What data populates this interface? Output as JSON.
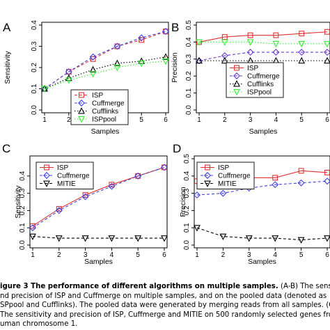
{
  "panels": [
    {
      "letter": "A",
      "ylabel": "Sensitivity",
      "xlabel": "Samples",
      "legend": [
        {
          "label": "ISP",
          "color": "#e03030",
          "marker": "square",
          "dash": "dashed"
        },
        {
          "label": "Cuffmerge",
          "color": "#4040e0",
          "marker": "diamond",
          "dash": "dashed"
        },
        {
          "label": "Cufflinks",
          "color": "#000000",
          "marker": "triangle-up",
          "dash": "dotted"
        },
        {
          "label": "ISPpool",
          "color": "#33ee33",
          "marker": "triangle-down",
          "dash": "dotted"
        }
      ]
    },
    {
      "letter": "B",
      "ylabel": "Precision",
      "xlabel": "Samples",
      "legend": [
        {
          "label": "ISP",
          "color": "#e03030",
          "marker": "square",
          "dash": "solid"
        },
        {
          "label": "Cuffmerge",
          "color": "#6a3ad0",
          "marker": "diamond",
          "dash": "dashed"
        },
        {
          "label": "Cufflinks",
          "color": "#000000",
          "marker": "triangle-up",
          "dash": "dotted"
        },
        {
          "label": "ISPpool",
          "color": "#33ee33",
          "marker": "triangle-down",
          "dash": "dotted"
        }
      ]
    },
    {
      "letter": "C",
      "ylabel": "Sensitivity",
      "xlabel": "Samples",
      "legend": [
        {
          "label": "ISP",
          "color": "#e03030",
          "marker": "square",
          "dash": "solid"
        },
        {
          "label": "Cuffmerge",
          "color": "#4040e0",
          "marker": "diamond",
          "dash": "dashed"
        },
        {
          "label": "MITIE",
          "color": "#000000",
          "marker": "triangle-down",
          "dash": "dashed"
        }
      ]
    },
    {
      "letter": "D",
      "ylabel": "Precision",
      "xlabel": "Samples",
      "legend": [
        {
          "label": "ISP",
          "color": "#e03030",
          "marker": "square",
          "dash": "solid"
        },
        {
          "label": "Cuffmerge",
          "color": "#4040e0",
          "marker": "diamond",
          "dash": "dashed"
        },
        {
          "label": "MITIE",
          "color": "#000000",
          "marker": "triangle-down",
          "dash": "dashed"
        }
      ]
    }
  ],
  "chart_data": [
    {
      "type": "line",
      "panel": "A",
      "x": [
        1,
        2,
        3,
        4,
        5,
        6
      ],
      "xlim": [
        1,
        6
      ],
      "ylim": [
        0,
        0.4
      ],
      "xticks": [
        "1",
        "2",
        "3",
        "4",
        "5",
        "6"
      ],
      "yticks": [
        "0.0",
        "0.1",
        "0.2",
        "0.3",
        "0.4"
      ],
      "series": [
        {
          "name": "ISP",
          "values": [
            0.1,
            0.18,
            0.24,
            0.3,
            0.33,
            0.37
          ]
        },
        {
          "name": "Cuffmerge",
          "values": [
            0.1,
            0.18,
            0.25,
            0.3,
            0.34,
            0.37
          ]
        },
        {
          "name": "Cufflinks",
          "values": [
            0.1,
            0.15,
            0.19,
            0.22,
            0.23,
            0.25
          ]
        },
        {
          "name": "ISPpool",
          "values": [
            0.1,
            0.14,
            0.17,
            0.2,
            0.22,
            0.23
          ]
        }
      ]
    },
    {
      "type": "line",
      "panel": "B",
      "x": [
        1,
        2,
        3,
        4,
        5,
        6
      ],
      "xlim": [
        1,
        6
      ],
      "ylim": [
        0,
        0.5
      ],
      "xticks": [
        "1",
        "2",
        "3",
        "4",
        "5",
        "6"
      ],
      "yticks": [
        "0.0",
        "0.1",
        "0.2",
        "0.3",
        "0.4",
        "0.5"
      ],
      "series": [
        {
          "name": "ISP",
          "values": [
            0.4,
            0.43,
            0.44,
            0.44,
            0.45,
            0.46
          ]
        },
        {
          "name": "Cuffmerge",
          "values": [
            0.29,
            0.32,
            0.34,
            0.34,
            0.34,
            0.34
          ]
        },
        {
          "name": "Cufflinks",
          "values": [
            0.29,
            0.29,
            0.29,
            0.29,
            0.29,
            0.29
          ]
        },
        {
          "name": "ISPpool",
          "values": [
            0.4,
            0.4,
            0.4,
            0.39,
            0.39,
            0.39
          ]
        }
      ]
    },
    {
      "type": "line",
      "panel": "C",
      "x": [
        1,
        2,
        3,
        4,
        5,
        6
      ],
      "xlim": [
        1,
        6
      ],
      "ylim": [
        0,
        0.5
      ],
      "xticks": [
        "1",
        "2",
        "3",
        "4",
        "5",
        "6"
      ],
      "yticks": [
        "0.0",
        "0.1",
        "0.2",
        "0.3",
        "0.4"
      ],
      "series": [
        {
          "name": "ISP",
          "values": [
            0.11,
            0.21,
            0.29,
            0.35,
            0.4,
            0.45
          ]
        },
        {
          "name": "Cuffmerge",
          "values": [
            0.1,
            0.2,
            0.28,
            0.34,
            0.4,
            0.45
          ]
        },
        {
          "name": "MITIE",
          "values": [
            0.05,
            0.04,
            0.04,
            0.04,
            0.04,
            0.04
          ]
        }
      ]
    },
    {
      "type": "line",
      "panel": "D",
      "x": [
        1,
        2,
        3,
        4,
        5,
        6
      ],
      "xlim": [
        1,
        6
      ],
      "ylim": [
        0,
        0.5
      ],
      "xticks": [
        "1",
        "2",
        "3",
        "4",
        "5",
        "6"
      ],
      "yticks": [
        "0.0",
        "0.1",
        "0.2",
        "0.3",
        "0.4",
        "0.5"
      ],
      "series": [
        {
          "name": "ISP",
          "values": [
            0.37,
            0.37,
            0.39,
            0.39,
            0.43,
            0.42
          ]
        },
        {
          "name": "Cuffmerge",
          "values": [
            0.29,
            0.3,
            0.33,
            0.35,
            0.36,
            0.37
          ]
        },
        {
          "name": "MITIE",
          "values": [
            0.1,
            0.05,
            0.04,
            0.04,
            0.03,
            0.04
          ]
        }
      ]
    }
  ],
  "caption": {
    "line1_bold": "igure 3  The performance of different algorithms on multiple samples.",
    "line1_rest": " (A-B) The sensitivity",
    "line2": "nd precision of ISP and Cuffmerge on multiple samples, and on the pooled data (denoted as",
    "line3": "SPpool and Cufflinks). The pooled data were generated by merging reads from all samples. (C-D",
    "line4": "The sensitivity and precision of ISP, Cuffmerge and MITIE on 500 randomly selected genes from",
    "line5": "uman chromosome 1."
  }
}
